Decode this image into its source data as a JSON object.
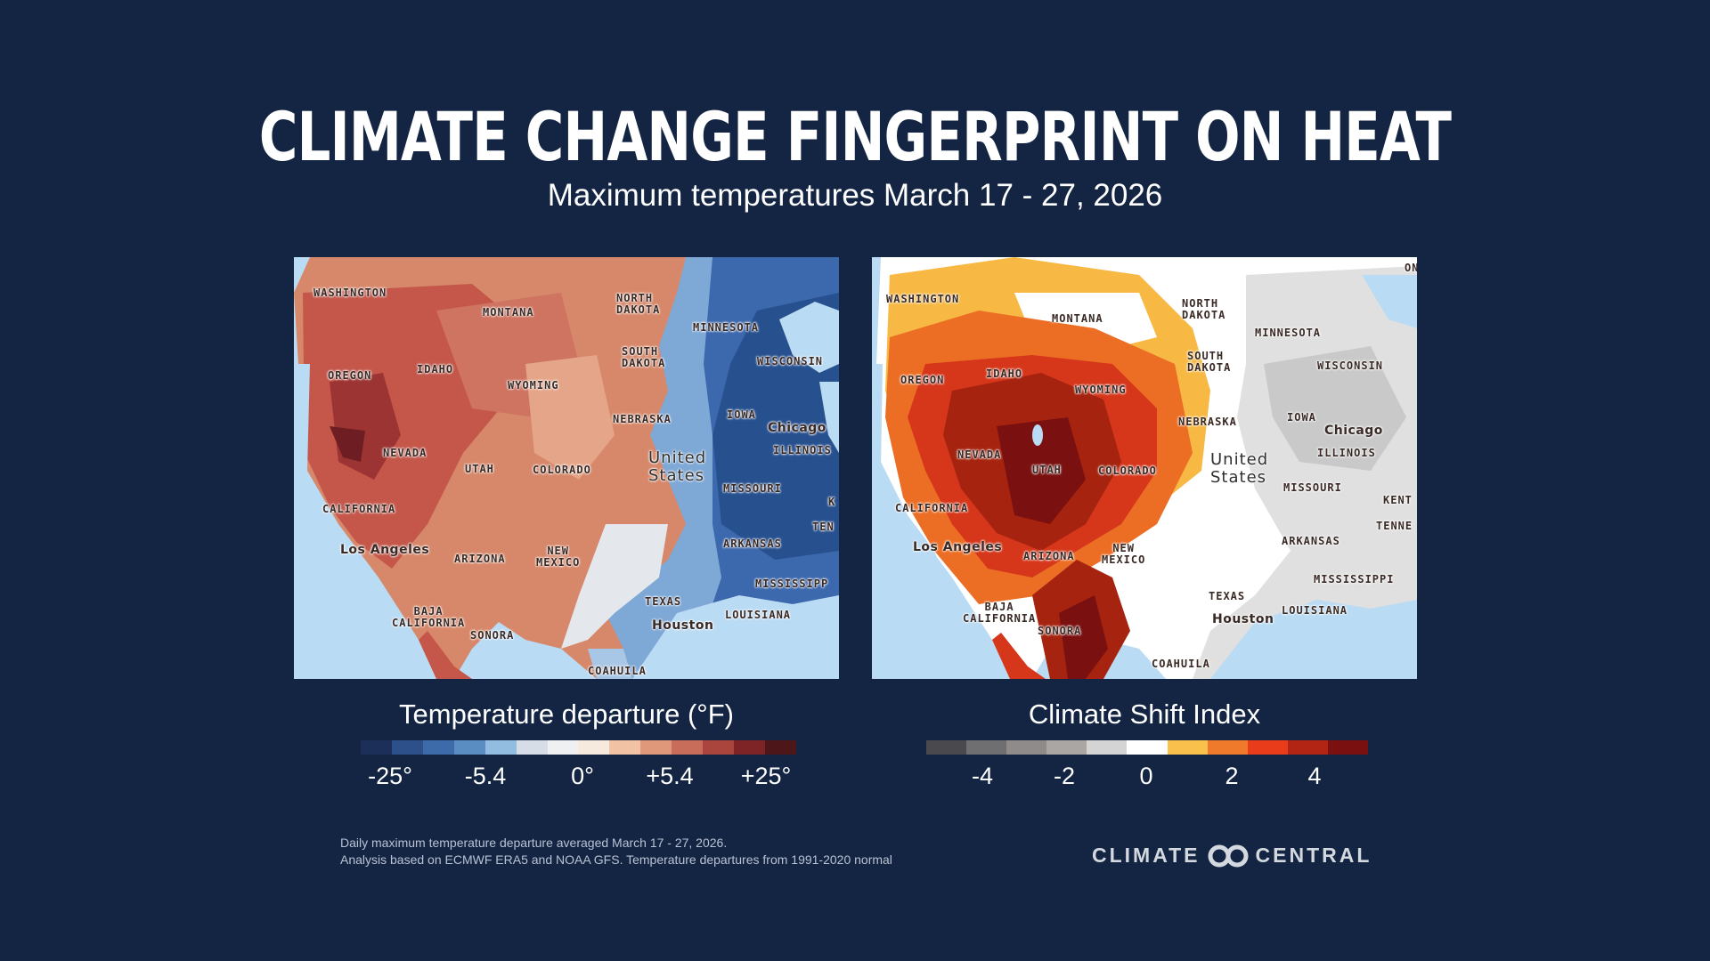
{
  "header": {
    "title": "Climate Change Fingerprint on Heat",
    "subtitle": "Maximum temperatures March 17 - 27, 2026"
  },
  "left_map": {
    "legend_title": "Temperature departure (°F)",
    "legend_ticks": [
      "-25°",
      "-5.4",
      "0°",
      "+5.4",
      "+25°"
    ],
    "legend_colors": [
      "#1c2f58",
      "#2d4f8a",
      "#3d6aa8",
      "#5a8dc2",
      "#93bde0",
      "#d6dde6",
      "#eef0f2",
      "#f6e9dd",
      "#f1c3a4",
      "#e0987b",
      "#c86d5a",
      "#a9453c",
      "#7e2326",
      "#4d1619"
    ],
    "labels": {
      "washington": "WASHINGTON",
      "montana": "MONTANA",
      "north_dakota": "NORTH\nDAKOTA",
      "minnesota": "MINNESOTA",
      "south_dakota": "SOUTH\nDAKOTA",
      "wisconsin": "WISCONSIN",
      "oregon": "OREGON",
      "idaho": "IDAHO",
      "wyoming": "WYOMING",
      "nebraska": "NEBRASKA",
      "iowa": "IOWA",
      "chicago": "Chicago",
      "illinois": "ILLINOIS",
      "nevada": "NEVADA",
      "utah": "UTAH",
      "colorado": "COLORADO",
      "united_states": "United\nStates",
      "missouri": "MISSOURI",
      "california": "CALIFORNIA",
      "ky": "K",
      "tenn": "TEN",
      "arkansas": "ARKANSAS",
      "los_angeles": "Los Angeles",
      "arizona": "ARIZONA",
      "new_mexico": "NEW\nMEXICO",
      "mississippi": "MISSISSIPP",
      "texas": "TEXAS",
      "louisiana": "LOUISIANA",
      "baja": "BAJA\nCALIFORNIA",
      "houston": "Houston",
      "sonora": "SONORA",
      "coahuila": "COAHUILA"
    }
  },
  "right_map": {
    "legend_title": "Climate Shift Index",
    "legend_ticks": [
      "-4",
      "-2",
      "0",
      "2",
      "4"
    ],
    "legend_colors": [
      "#4a4a4e",
      "#6f6f72",
      "#8f8b8b",
      "#aaa6a3",
      "#d4d4d4",
      "#ffffff",
      "#f9c04c",
      "#f07a2b",
      "#e83c1b",
      "#b22514",
      "#7a1010"
    ],
    "labels": {
      "on": "ON",
      "washington": "WASHINGTON",
      "north_dakota": "NORTH\nDAKOTA",
      "montana": "MONTANA",
      "minnesota": "MINNESOTA",
      "south_dakota": "SOUTH\nDAKOTA",
      "wisconsin": "WISCONSIN",
      "oregon": "OREGON",
      "idaho": "IDAHO",
      "wyoming": "WYOMING",
      "nebraska": "NEBRASKA",
      "iowa": "IOWA",
      "chicago": "Chicago",
      "nevada": "NEVADA",
      "illinois": "ILLINOIS",
      "utah": "UTAH",
      "colorado": "COLORADO",
      "united_states": "United\nStates",
      "missouri": "MISSOURI",
      "kent": "KENT",
      "california": "CALIFORNIA",
      "tenne": "TENNE",
      "arkansas": "ARKANSAS",
      "los_angeles": "Los Angeles",
      "arizona": "ARIZONA",
      "new_mexico": "NEW\nMEXICO",
      "mississippi": "MISSISSIPPI",
      "texas": "TEXAS",
      "louisiana": "LOUISIANA",
      "baja": "BAJA\nCALIFORNIA",
      "houston": "Houston",
      "sonora": "SONORA",
      "coahuila": "COAHUILA"
    }
  },
  "footnote": {
    "line1": "Daily maximum temperature departure averaged  March 17 - 27, 2026.",
    "line2": "Analysis based on ECMWF ERA5 and NOAA GFS. Temperature departures from 1991-2020 normal"
  },
  "brand": {
    "left": "CLIMATE",
    "right": "CENTRAL"
  }
}
